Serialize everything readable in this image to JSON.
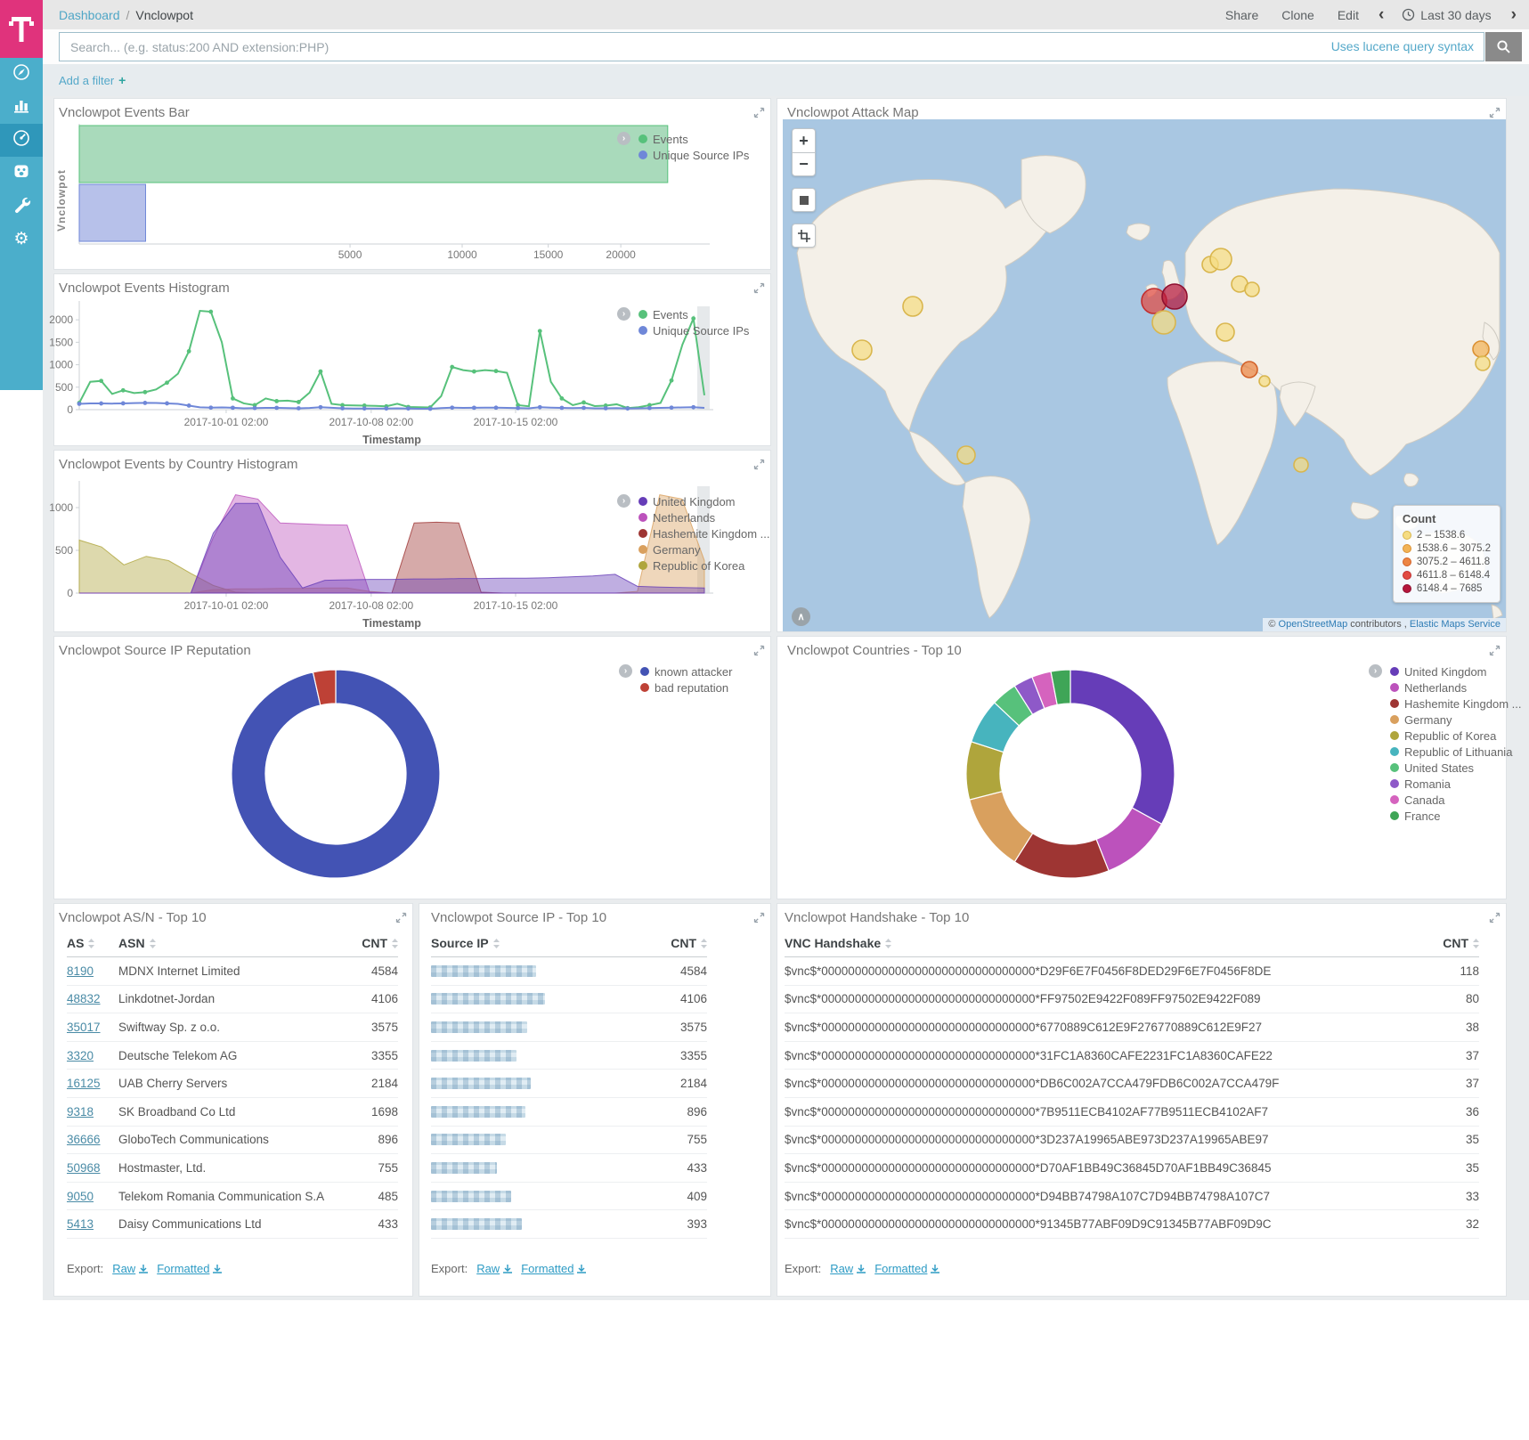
{
  "topbar": {
    "breadcrumb": {
      "root": "Dashboard",
      "sep": "/",
      "current": "Vnclowpot"
    },
    "actions": {
      "share": "Share",
      "clone": "Clone",
      "edit": "Edit"
    },
    "time_prev": "‹",
    "time_next": "›",
    "time_range": "Last 30 days"
  },
  "search": {
    "placeholder": "Search... (e.g. status:200 AND extension:PHP)",
    "hint": "Uses lucene query syntax"
  },
  "filter_bar": {
    "add_filter": "Add a filter",
    "plus": "+"
  },
  "sidebar": {
    "icons": [
      "discover-compass",
      "visualize-bar-chart",
      "dashboard-gauge",
      "timelion-face",
      "devtools-wrench",
      "management-gear"
    ],
    "active": "dashboard-gauge"
  },
  "panels": {
    "events_bar": {
      "title": "Vnclowpot Events Bar"
    },
    "events_histogram": {
      "title": "Vnclowpot Events Histogram"
    },
    "country_histogram": {
      "title": "Vnclowpot Events by Country Histogram"
    },
    "attack_map": {
      "title": "Vnclowpot Attack Map",
      "legend_title": "Count",
      "attribution": {
        "copy": "©",
        "osm": "OpenStreetMap",
        "contributors": "contributors ,",
        "ems": "Elastic Maps Service"
      }
    },
    "reputation": {
      "title": "Vnclowpot Source IP Reputation"
    },
    "countries": {
      "title": "Vnclowpot Countries - Top 10"
    },
    "asn_table": {
      "title": "Vnclowpot AS/N - Top 10"
    },
    "srcip_table": {
      "title": "Vnclowpot Source IP - Top 10"
    },
    "handshake_table": {
      "title": "Vnclowpot Handshake - Top 10"
    }
  },
  "export": {
    "label": "Export:",
    "raw": "Raw",
    "formatted": "Formatted"
  },
  "chart_data": [
    {
      "id": "events_bar",
      "type": "bar",
      "orientation": "horizontal",
      "scale": "sqrt",
      "title": "Vnclowpot Events Bar",
      "ylabel": "Vnclowpot",
      "xticks": [
        5000,
        10000,
        15000,
        20000
      ],
      "xmax": 26500,
      "series": [
        {
          "name": "Events",
          "value": 23616,
          "color": "#57C17B",
          "fill": "#A9DABB"
        },
        {
          "name": "Unique Source IPs",
          "value": 300,
          "color": "#6F87D8",
          "fill": "#B7C1EA"
        }
      ]
    },
    {
      "id": "events_histogram",
      "type": "line",
      "title": "Vnclowpot Events Histogram",
      "xlabel": "Timestamp",
      "yticks": [
        0,
        500,
        1000,
        1500,
        2000
      ],
      "ymax": 2300,
      "xticks": [
        {
          "label": "2017-10-01 02:00",
          "f": 0.235
        },
        {
          "label": "2017-10-08 02:00",
          "f": 0.467
        },
        {
          "label": "2017-10-15 02:00",
          "f": 0.698
        }
      ],
      "series": [
        {
          "name": "Events",
          "color": "#57C17B",
          "values": [
            150,
            620,
            640,
            350,
            430,
            370,
            390,
            450,
            600,
            800,
            1300,
            2200,
            2180,
            1500,
            250,
            140,
            100,
            250,
            190,
            200,
            170,
            380,
            850,
            130,
            100,
            95,
            90,
            85,
            75,
            130,
            60,
            55,
            50,
            300,
            950,
            880,
            850,
            880,
            860,
            820,
            100,
            75,
            1750,
            620,
            250,
            100,
            160,
            80,
            90,
            120,
            35,
            55,
            100,
            150,
            650,
            1450,
            2030,
            320
          ]
        },
        {
          "name": "Unique Source IPs",
          "color": "#6F87D8",
          "values": [
            130,
            140,
            138,
            135,
            140,
            145,
            150,
            148,
            140,
            128,
            90,
            52,
            45,
            50,
            42,
            30,
            35,
            40,
            40,
            35,
            30,
            38,
            55,
            42,
            30,
            26,
            25,
            25,
            26,
            30,
            25,
            20,
            20,
            35,
            45,
            40,
            42,
            45,
            44,
            40,
            35,
            30,
            55,
            45,
            40,
            35,
            40,
            30,
            30,
            35,
            25,
            30,
            35,
            40,
            45,
            50,
            55,
            40
          ]
        }
      ]
    },
    {
      "id": "country_histogram",
      "type": "area",
      "title": "Vnclowpot Events by Country Histogram",
      "xlabel": "Timestamp",
      "yticks": [
        0,
        500,
        1000
      ],
      "ymax": 1250,
      "xticks": [
        {
          "label": "2017-10-01 02:00",
          "f": 0.235
        },
        {
          "label": "2017-10-08 02:00",
          "f": 0.467
        },
        {
          "label": "2017-10-15 02:00",
          "f": 0.698
        }
      ],
      "series": [
        {
          "name": "United Kingdom",
          "color": "#663DB8",
          "values": [
            0,
            0,
            0,
            0,
            0,
            0,
            700,
            1050,
            1050,
            420,
            60,
            150,
            155,
            160,
            160,
            165,
            165,
            170,
            170,
            175,
            175,
            180,
            190,
            200,
            220,
            80,
            70,
            65,
            60
          ]
        },
        {
          "name": "Netherlands",
          "color": "#BC52BC",
          "values": [
            0,
            0,
            0,
            0,
            0,
            0,
            650,
            1150,
            1100,
            820,
            810,
            800,
            795,
            10,
            0,
            0,
            0,
            0,
            0,
            0,
            0,
            0,
            0,
            0,
            0,
            0,
            0,
            0,
            0
          ]
        },
        {
          "name": "Hashemite Kingdom ...",
          "color": "#9E3533",
          "values": [
            0,
            0,
            0,
            0,
            0,
            0,
            0,
            0,
            0,
            0,
            0,
            0,
            0,
            0,
            0,
            820,
            830,
            820,
            10,
            0,
            0,
            0,
            0,
            0,
            0,
            0,
            0,
            0,
            0
          ]
        },
        {
          "name": "Germany",
          "color": "#D9A05E",
          "values": [
            0,
            0,
            0,
            0,
            0,
            0,
            40,
            50,
            50,
            55,
            55,
            60,
            60,
            20,
            0,
            0,
            0,
            0,
            0,
            0,
            0,
            0,
            0,
            0,
            0,
            20,
            1150,
            1100,
            380
          ]
        },
        {
          "name": "Republic of Korea",
          "color": "#AFA53C",
          "values": [
            620,
            540,
            330,
            430,
            380,
            230,
            90,
            10,
            0,
            0,
            0,
            0,
            0,
            0,
            0,
            0,
            0,
            0,
            0,
            0,
            0,
            0,
            0,
            0,
            0,
            0,
            0,
            0,
            0
          ]
        }
      ]
    },
    {
      "id": "reputation",
      "type": "pie",
      "title": "Vnclowpot Source IP Reputation",
      "start_angle": -90,
      "slices": [
        {
          "label": "known attacker",
          "pct": 96.5,
          "color": "#4353B4"
        },
        {
          "label": "bad reputation",
          "pct": 3.5,
          "color": "#BE4136"
        }
      ]
    },
    {
      "id": "countries",
      "type": "pie",
      "title": "Vnclowpot Countries - Top 10",
      "start_angle": -90,
      "slices": [
        {
          "label": "United Kingdom",
          "pct": 33,
          "color": "#663DB8"
        },
        {
          "label": "Netherlands",
          "pct": 11,
          "color": "#BC52BC"
        },
        {
          "label": "Hashemite Kingdom ...",
          "pct": 15,
          "color": "#9E3533"
        },
        {
          "label": "Germany",
          "pct": 12,
          "color": "#D9A05E"
        },
        {
          "label": "Republic of Korea",
          "pct": 9,
          "color": "#AFA53C"
        },
        {
          "label": "Republic of Lithuania",
          "pct": 7,
          "color": "#47B4BE"
        },
        {
          "label": "United States",
          "pct": 4,
          "color": "#57C17B"
        },
        {
          "label": "Romania",
          "pct": 3,
          "color": "#8E59C8"
        },
        {
          "label": "Canada",
          "pct": 3,
          "color": "#D563BE"
        },
        {
          "label": "France",
          "pct": 3,
          "color": "#3FA557"
        }
      ]
    },
    {
      "id": "attack_map",
      "type": "map",
      "title": "Vnclowpot Attack Map",
      "legend_title": "Count",
      "levels": [
        {
          "label": "2 – 1538.6",
          "fill": "#F5DC82",
          "stroke": "#D9B64D"
        },
        {
          "label": "1538.6 – 3075.2",
          "fill": "#F2B356",
          "stroke": "#DB9133"
        },
        {
          "label": "3075.2 – 4611.8",
          "fill": "#EC8543",
          "stroke": "#D2622A"
        },
        {
          "label": "4611.8 – 6148.4",
          "fill": "#E14B42",
          "stroke": "#C22E2E"
        },
        {
          "label": "6148.4 – 7685",
          "fill": "#B5173B",
          "stroke": "#8E1030"
        }
      ],
      "points": [
        {
          "x": 146,
          "y": 210,
          "r": 11,
          "level": 1
        },
        {
          "x": 89,
          "y": 259,
          "r": 11,
          "level": 1
        },
        {
          "x": 206,
          "y": 377,
          "r": 10,
          "level": 1
        },
        {
          "x": 417,
          "y": 204,
          "r": 14,
          "level": 4
        },
        {
          "x": 440,
          "y": 199,
          "r": 14,
          "level": 5
        },
        {
          "x": 428,
          "y": 228,
          "r": 13,
          "level": 1
        },
        {
          "x": 480,
          "y": 163,
          "r": 9,
          "level": 1
        },
        {
          "x": 492,
          "y": 157,
          "r": 12,
          "level": 1
        },
        {
          "x": 513,
          "y": 185,
          "r": 9,
          "level": 1
        },
        {
          "x": 527,
          "y": 191,
          "r": 8,
          "level": 1
        },
        {
          "x": 497,
          "y": 239,
          "r": 10,
          "level": 1
        },
        {
          "x": 524,
          "y": 281,
          "r": 9,
          "level": 3
        },
        {
          "x": 541,
          "y": 294,
          "r": 6,
          "level": 1
        },
        {
          "x": 784,
          "y": 258,
          "r": 9,
          "level": 2
        },
        {
          "x": 786,
          "y": 274,
          "r": 8,
          "level": 1
        },
        {
          "x": 582,
          "y": 388,
          "r": 8,
          "level": 1
        }
      ]
    },
    {
      "id": "asn_table",
      "type": "table",
      "title": "Vnclowpot AS/N - Top 10",
      "columns": [
        "AS",
        "ASN",
        "CNT"
      ],
      "rows": [
        [
          "8190",
          "MDNX Internet Limited",
          "4584"
        ],
        [
          "48832",
          "Linkdotnet-Jordan",
          "4106"
        ],
        [
          "35017",
          "Swiftway Sp. z o.o.",
          "3575"
        ],
        [
          "3320",
          "Deutsche Telekom AG",
          "3355"
        ],
        [
          "16125",
          "UAB Cherry Servers",
          "2184"
        ],
        [
          "9318",
          "SK Broadband Co Ltd",
          "1698"
        ],
        [
          "36666",
          "GloboTech Communications",
          "896"
        ],
        [
          "50968",
          "Hostmaster, Ltd.",
          "755"
        ],
        [
          "9050",
          "Telekom Romania Communication S.A",
          "485"
        ],
        [
          "5413",
          "Daisy Communications Ltd",
          "433"
        ]
      ]
    },
    {
      "id": "srcip_table",
      "type": "table",
      "title": "Vnclowpot Source IP - Top 10",
      "columns": [
        "Source IP",
        "CNT"
      ],
      "redacted": true,
      "redact_widths": [
        118,
        128,
        108,
        96,
        112,
        106,
        84,
        74,
        90,
        102
      ],
      "counts": [
        "4584",
        "4106",
        "3575",
        "3355",
        "2184",
        "896",
        "755",
        "433",
        "409",
        "393"
      ]
    },
    {
      "id": "handshake_table",
      "type": "table",
      "title": "Vnclowpot Handshake - Top 10",
      "columns": [
        "VNC Handshake",
        "CNT"
      ],
      "rows": [
        [
          "$vnc$*00000000000000000000000000000000*D29F6E7F0456F8DED29F6E7F0456F8DE",
          "118"
        ],
        [
          "$vnc$*00000000000000000000000000000000*FF97502E9422F089FF97502E9422F089",
          "80"
        ],
        [
          "$vnc$*00000000000000000000000000000000*6770889C612E9F276770889C612E9F27",
          "38"
        ],
        [
          "$vnc$*00000000000000000000000000000000*31FC1A8360CAFE2231FC1A8360CAFE22",
          "37"
        ],
        [
          "$vnc$*00000000000000000000000000000000*DB6C002A7CCA479FDB6C002A7CCA479F",
          "37"
        ],
        [
          "$vnc$*00000000000000000000000000000000*7B9511ECB4102AF77B9511ECB4102AF7",
          "36"
        ],
        [
          "$vnc$*00000000000000000000000000000000*3D237A19965ABE973D237A19965ABE97",
          "35"
        ],
        [
          "$vnc$*00000000000000000000000000000000*D70AF1BB49C36845D70AF1BB49C36845",
          "35"
        ],
        [
          "$vnc$*00000000000000000000000000000000*D94BB74798A107C7D94BB74798A107C7",
          "33"
        ],
        [
          "$vnc$*00000000000000000000000000000000*91345B77ABF09D9C91345B77ABF09D9C",
          "32"
        ]
      ]
    }
  ]
}
